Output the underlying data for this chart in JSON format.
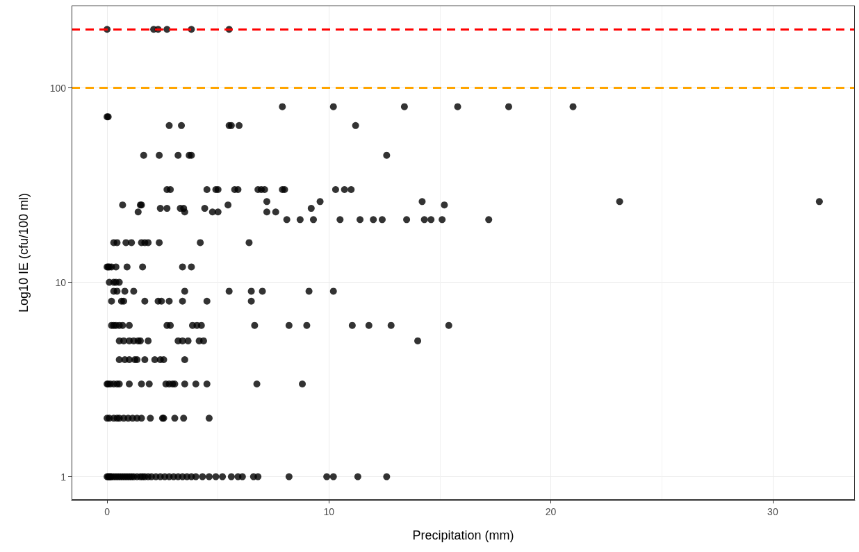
{
  "chart_data": {
    "type": "scatter",
    "xlabel": "Precipitation (mm)",
    "ylabel": "Log10 IE (cfu/100 ml)",
    "log": "y",
    "grid": true,
    "marker": "circle",
    "xlim": [
      -1.6,
      33.7
    ],
    "xticks": [
      0,
      10,
      20,
      30
    ],
    "ylim": [
      0.76,
      265
    ],
    "yticks": [
      1,
      10,
      100
    ],
    "ref_lines": [
      {
        "axis": "y",
        "value": 200,
        "color": "#ff0000",
        "line_style": "dashed"
      },
      {
        "axis": "y",
        "value": 100,
        "color": "#ffa500",
        "line_style": "dashed"
      }
    ],
    "series": [
      {
        "color": "#000000",
        "x": [
          0,
          2.1,
          2.3,
          2.7,
          3.8,
          5.5,
          7.9,
          10.2,
          13.4,
          15.8,
          18.1,
          21.0,
          0,
          0.05,
          2.8,
          3.35,
          5.5,
          5.6,
          5.95,
          11.2,
          1.65,
          2.35,
          3.2,
          3.7,
          3.8,
          12.6,
          2.7,
          2.85,
          4.5,
          4.9,
          5.0,
          5.75,
          5.9,
          6.8,
          6.95,
          7.1,
          7.9,
          8.0,
          10.3,
          10.7,
          11.0,
          0.7,
          1.5,
          1.55,
          5.45,
          15.2,
          2.4,
          2.7,
          3.3,
          3.45,
          4.4,
          9.2,
          7.2,
          9.6,
          14.2,
          23.1,
          32.1,
          1.4,
          3.5,
          4.75,
          5.0,
          7.2,
          7.6,
          8.1,
          8.7,
          9.3,
          10.5,
          11.4,
          12.0,
          12.4,
          13.5,
          14.3,
          14.6,
          15.1,
          17.2,
          0.3,
          0.45,
          0.85,
          1.1,
          1.55,
          1.7,
          1.85,
          2.35,
          4.2,
          6.4,
          0,
          0.05,
          0.1,
          0.2,
          0.4,
          0.9,
          1.6,
          3.4,
          3.8,
          0.1,
          0.3,
          0.4,
          0.55,
          0.3,
          0.45,
          0.8,
          1.2,
          3.5,
          5.5,
          6.5,
          7.0,
          9.1,
          10.2,
          0.2,
          0.65,
          0.75,
          1.7,
          2.3,
          2.45,
          2.8,
          3.4,
          4.5,
          6.5,
          0.2,
          0.3,
          0.4,
          0.55,
          0.7,
          1.0,
          2.7,
          2.85,
          3.85,
          4.05,
          4.25,
          6.65,
          8.2,
          9.0,
          11.05,
          11.8,
          12.8,
          15.4,
          0.55,
          0.75,
          1.0,
          1.2,
          1.4,
          1.5,
          1.85,
          3.2,
          3.4,
          3.65,
          4.15,
          4.35,
          14.0,
          0.55,
          0.8,
          1.0,
          1.25,
          1.35,
          1.7,
          2.15,
          2.4,
          2.55,
          3.5,
          0,
          0.05,
          0.15,
          0.3,
          0.45,
          0.55,
          1.0,
          1.55,
          1.9,
          2.65,
          2.8,
          2.95,
          3.05,
          3.5,
          4.0,
          4.5,
          6.75,
          8.8,
          0,
          0.1,
          0.3,
          0.45,
          0.55,
          0.75,
          0.95,
          1.15,
          1.35,
          1.55,
          1.95,
          2.5,
          2.55,
          3.05,
          3.45,
          4.6,
          0,
          0.05,
          0.1,
          0.15,
          0.2,
          0.3,
          0.4,
          0.5,
          0.6,
          0.7,
          0.8,
          0.9,
          1.0,
          1.1,
          1.2,
          1.35,
          1.5,
          1.6,
          1.7,
          1.85,
          2.0,
          2.2,
          2.4,
          2.6,
          2.8,
          3.0,
          3.2,
          3.4,
          3.6,
          3.8,
          4.0,
          4.3,
          4.6,
          4.9,
          5.2,
          5.6,
          5.9,
          6.1,
          6.6,
          6.8,
          8.2,
          9.9,
          10.2,
          11.3,
          12.6
        ],
        "values": [
          200,
          200,
          200,
          200,
          200,
          200,
          80,
          80,
          80,
          80,
          80,
          80,
          71,
          71,
          64,
          64,
          64,
          64,
          64,
          64,
          45,
          45,
          45,
          45,
          45,
          45,
          30,
          30,
          30,
          30,
          30,
          30,
          30,
          30,
          30,
          30,
          30,
          30,
          30,
          30,
          30,
          25,
          25,
          25,
          25,
          25,
          24,
          24,
          24,
          24,
          24,
          24,
          26,
          26,
          26,
          26,
          26,
          23,
          23,
          23,
          23,
          23,
          23,
          21,
          21,
          21,
          21,
          21,
          21,
          21,
          21,
          21,
          21,
          21,
          21,
          16,
          16,
          16,
          16,
          16,
          16,
          16,
          16,
          16,
          16,
          12,
          12,
          12,
          12,
          12,
          12,
          12,
          12,
          12,
          10,
          10,
          10,
          10,
          9,
          9,
          9,
          9,
          9,
          9,
          9,
          9,
          9,
          9,
          8,
          8,
          8,
          8,
          8,
          8,
          8,
          8,
          8,
          8,
          6,
          6,
          6,
          6,
          6,
          6,
          6,
          6,
          6,
          6,
          6,
          6,
          6,
          6,
          6,
          6,
          6,
          6,
          5,
          5,
          5,
          5,
          5,
          5,
          5,
          5,
          5,
          5,
          5,
          5,
          5,
          4,
          4,
          4,
          4,
          4,
          4,
          4,
          4,
          4,
          4,
          3,
          3,
          3,
          3,
          3,
          3,
          3,
          3,
          3,
          3,
          3,
          3,
          3,
          3,
          3,
          3,
          3,
          3,
          2,
          2,
          2,
          2,
          2,
          2,
          2,
          2,
          2,
          2,
          2,
          2,
          2,
          2,
          2,
          2,
          1,
          1,
          1,
          1,
          1,
          1,
          1,
          1,
          1,
          1,
          1,
          1,
          1,
          1,
          1,
          1,
          1,
          1,
          1,
          1,
          1,
          1,
          1,
          1,
          1,
          1,
          1,
          1,
          1,
          1,
          1,
          1,
          1,
          1,
          1,
          1,
          1,
          1,
          1,
          1,
          1,
          1,
          1,
          1,
          1
        ]
      }
    ]
  }
}
